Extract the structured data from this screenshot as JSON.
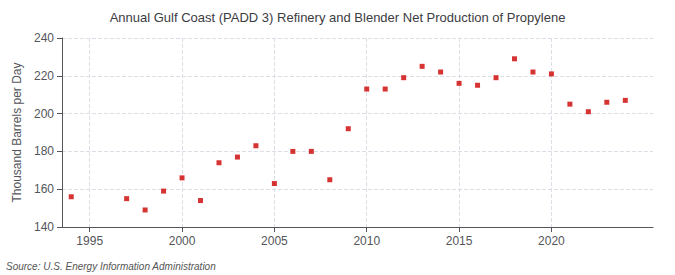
{
  "chart_data": {
    "type": "scatter",
    "title": "Annual Gulf Coast (PADD 3) Refinery and Blender Net Production of Propylene",
    "ylabel": "Thousand Barrels per Day",
    "annotation": "Source: U.S. Energy Information Administration",
    "x": [
      1994,
      1997,
      1998,
      1999,
      2000,
      2001,
      2002,
      2003,
      2004,
      2005,
      2006,
      2007,
      2008,
      2009,
      2010,
      2011,
      2012,
      2013,
      2014,
      2015,
      2016,
      2017,
      2018,
      2019,
      2020,
      2021,
      2022,
      2023,
      2024
    ],
    "values": [
      156,
      155,
      149,
      159,
      166,
      154,
      174,
      177,
      183,
      163,
      180,
      180,
      165,
      192,
      213,
      213,
      219,
      225,
      222,
      216,
      215,
      219,
      229,
      222,
      221,
      205,
      201,
      206,
      207
    ],
    "color": "#cc0000",
    "marker": "square",
    "xlim": [
      1993.5,
      2025.5
    ],
    "xticks": [
      1995,
      2000,
      2005,
      2010,
      2015,
      2020
    ],
    "ylim": [
      140,
      240
    ],
    "yticks": [
      140,
      160,
      180,
      200,
      220,
      240
    ],
    "grid": true
  }
}
